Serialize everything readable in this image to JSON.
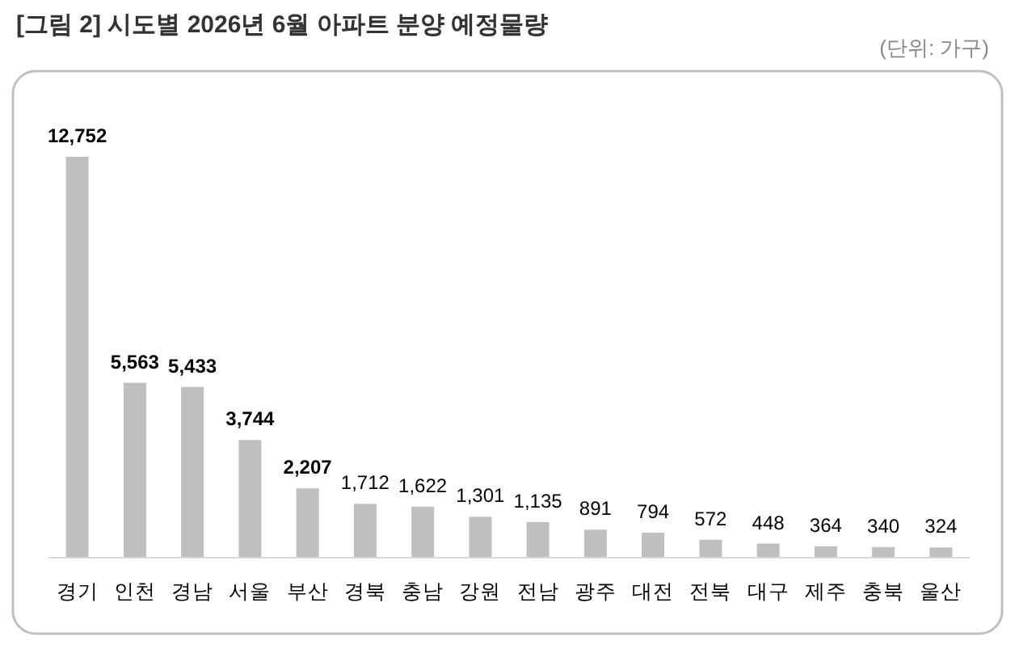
{
  "chart_data": {
    "type": "bar",
    "title": "[그림 2] 시도별 2026년 6월 아파트 분양 예정물량",
    "annotations": [
      "(단위: 가구)"
    ],
    "categories": [
      "경기",
      "인천",
      "경남",
      "서울",
      "부산",
      "경북",
      "충남",
      "강원",
      "전남",
      "광주",
      "대전",
      "전북",
      "대구",
      "제주",
      "충북",
      "울산"
    ],
    "values": [
      12752,
      5563,
      5433,
      3744,
      2207,
      1712,
      1622,
      1301,
      1135,
      891,
      794,
      572,
      448,
      364,
      340,
      324
    ],
    "value_labels": [
      "12,752",
      "5,563",
      "5,433",
      "3,744",
      "2,207",
      "1,712",
      "1,622",
      "1,301",
      "1,135",
      "891",
      "794",
      "572",
      "448",
      "364",
      "340",
      "324"
    ],
    "color": "#bfbfbf"
  }
}
